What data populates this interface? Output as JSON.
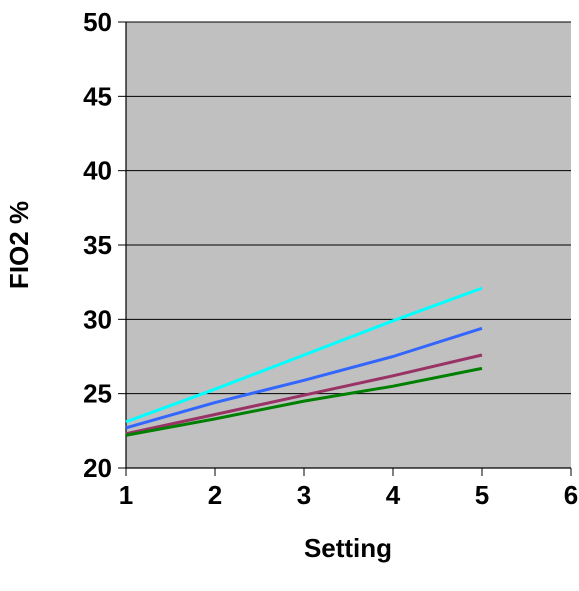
{
  "chart_data": {
    "type": "line",
    "title": "",
    "xlabel": "Setting",
    "ylabel": "FIO2 %",
    "xlim": [
      1,
      6
    ],
    "ylim": [
      20,
      50
    ],
    "x_ticks": [
      1,
      2,
      3,
      4,
      5,
      6
    ],
    "y_ticks": [
      20,
      25,
      30,
      35,
      40,
      45,
      50
    ],
    "grid": "horizontal",
    "legend": "none",
    "plot_background": "#c0c0c0",
    "x": [
      1,
      2,
      3,
      4,
      5
    ],
    "series": [
      {
        "color": "#00ffff",
        "values": [
          23.1,
          25.3,
          27.6,
          29.9,
          32.1
        ]
      },
      {
        "color": "#3366ff",
        "values": [
          22.7,
          24.4,
          25.9,
          27.5,
          29.4
        ]
      },
      {
        "color": "#993366",
        "values": [
          22.3,
          23.6,
          24.9,
          26.2,
          27.6
        ]
      },
      {
        "color": "#008000",
        "values": [
          22.2,
          23.3,
          24.5,
          25.5,
          26.7
        ]
      }
    ]
  }
}
